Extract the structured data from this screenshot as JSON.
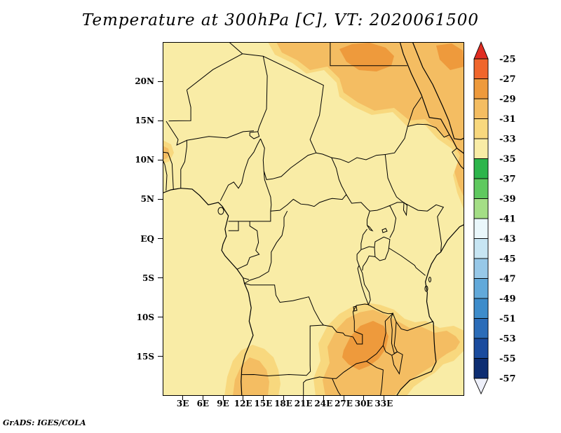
{
  "title": "Temperature at 300hPa [C], VT: 2020061500",
  "attribution": "GrADS: IGES/COLA",
  "map": {
    "lat_labels": [
      "20N",
      "15N",
      "10N",
      "5N",
      "EQ",
      "5S",
      "10S",
      "15S"
    ],
    "lon_labels": [
      "3E",
      "6E",
      "9E",
      "12E",
      "15E",
      "18E",
      "21E",
      "24E",
      "27E",
      "30E",
      "33E"
    ]
  },
  "palette": {
    "page_background": "#ffffff",
    "map_base": "#f9eca6",
    "band_31_33": "#f8d87e",
    "band_29_31": "#f4bd62",
    "band_27_29": "#ee9a3c",
    "border_line": "#000000"
  },
  "colorbar": {
    "tick_labels": [
      "-25",
      "-27",
      "-29",
      "-31",
      "-33",
      "-35",
      "-37",
      "-39",
      "-41",
      "-43",
      "-45",
      "-47",
      "-49",
      "-51",
      "-53",
      "-55",
      "-57"
    ],
    "segment_colors": [
      "#f0662c",
      "#ee9a3c",
      "#f4bd62",
      "#f8d87e",
      "#f9eca6",
      "#2cb54b",
      "#5fc95f",
      "#a4de86",
      "#eaf7fb",
      "#c7e5f3",
      "#97c8e8",
      "#62a9da",
      "#3d8ccb",
      "#2b6cb8",
      "#1a4b9e",
      "#0d2d72"
    ],
    "top_arrow_color": "#e02d22",
    "bottom_arrow_color": "#eef0fa"
  },
  "chart_data": {
    "type": "heatmap",
    "title": "Temperature at 300hPa [C], VT: 2020061500",
    "x_tick_labels": [
      "3E",
      "6E",
      "9E",
      "12E",
      "15E",
      "18E",
      "21E",
      "24E",
      "27E",
      "30E",
      "33E"
    ],
    "y_tick_labels": [
      "20N",
      "15N",
      "10N",
      "5N",
      "EQ",
      "5S",
      "10S",
      "15S"
    ],
    "colorbar_levels_C": [
      -25,
      -27,
      -29,
      -31,
      -33,
      -35,
      -37,
      -39,
      -41,
      -43,
      -45,
      -47,
      -49,
      -51,
      -53,
      -55,
      -57
    ],
    "legend_position": "right",
    "dominant_band_C": "-35 to -33",
    "shaded_regions": [
      {
        "region": "northeast (Sudan / Egypt / Ethiopia)",
        "band_C": "-31 to -27"
      },
      {
        "region": "southeast (Tanzania / Malawi / Mozambique)",
        "band_C": "-31 to -27"
      },
      {
        "region": "southwest coast (Angola)",
        "band_C": "-31 to -29"
      },
      {
        "region": "remainder of domain",
        "band_C": "-35 to -33"
      }
    ]
  }
}
